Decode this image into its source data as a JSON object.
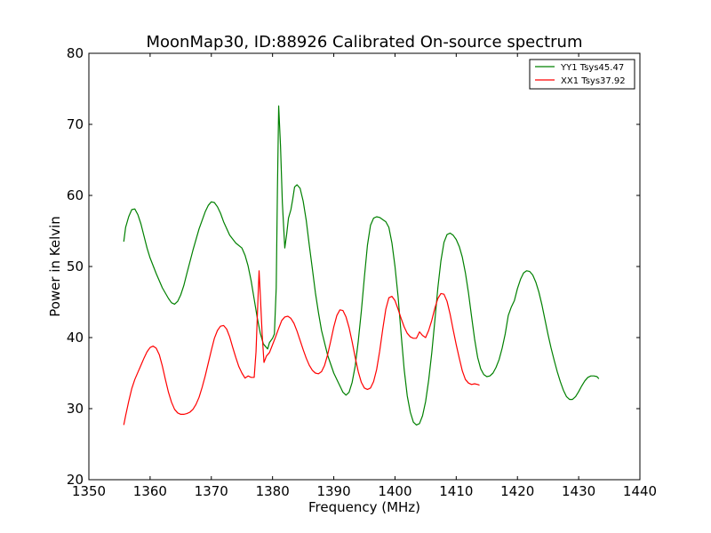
{
  "chart_data": {
    "type": "line",
    "title": "MoonMap30, ID:88926 Calibrated On-source spectrum",
    "xlabel": "Frequency (MHz)",
    "ylabel": "Power in Kelvin",
    "xlim": [
      1350,
      1440
    ],
    "ylim": [
      20,
      80
    ],
    "xticks": [
      1350,
      1360,
      1370,
      1380,
      1390,
      1400,
      1410,
      1420,
      1430,
      1440
    ],
    "yticks": [
      20,
      30,
      40,
      50,
      60,
      70,
      80
    ],
    "grid": false,
    "legend_position": "top-right",
    "series": [
      {
        "name": "YY1 Tsys45.47",
        "color": "#008000",
        "points": [
          [
            1355.7,
            53.5
          ],
          [
            1356.0,
            55.5
          ],
          [
            1356.5,
            57.0
          ],
          [
            1357.0,
            58.0
          ],
          [
            1357.5,
            58.1
          ],
          [
            1358.0,
            57.3
          ],
          [
            1358.5,
            56.0
          ],
          [
            1359.0,
            54.3
          ],
          [
            1359.5,
            52.6
          ],
          [
            1360.0,
            51.2
          ],
          [
            1361.0,
            49.0
          ],
          [
            1362.0,
            47.0
          ],
          [
            1363.0,
            45.5
          ],
          [
            1363.5,
            44.9
          ],
          [
            1364.0,
            44.7
          ],
          [
            1364.5,
            45.1
          ],
          [
            1365.0,
            46.0
          ],
          [
            1365.5,
            47.3
          ],
          [
            1366.0,
            49.0
          ],
          [
            1367.0,
            52.3
          ],
          [
            1368.0,
            55.3
          ],
          [
            1369.0,
            57.7
          ],
          [
            1369.5,
            58.6
          ],
          [
            1370.0,
            59.1
          ],
          [
            1370.5,
            59.0
          ],
          [
            1371.0,
            58.4
          ],
          [
            1371.5,
            57.5
          ],
          [
            1372.0,
            56.3
          ],
          [
            1373.0,
            54.4
          ],
          [
            1374.0,
            53.3
          ],
          [
            1375.0,
            52.6
          ],
          [
            1375.5,
            51.6
          ],
          [
            1376.0,
            50.1
          ],
          [
            1376.5,
            48.0
          ],
          [
            1377.0,
            45.4
          ],
          [
            1377.5,
            42.8
          ],
          [
            1378.0,
            40.6
          ],
          [
            1378.5,
            39.1
          ],
          [
            1379.0,
            38.6
          ],
          [
            1379.2,
            38.4
          ],
          [
            1379.5,
            39.3
          ],
          [
            1380.0,
            39.9
          ],
          [
            1380.3,
            40.5
          ],
          [
            1380.6,
            47.0
          ],
          [
            1380.8,
            61.0
          ],
          [
            1381.0,
            72.6
          ],
          [
            1381.3,
            67.0
          ],
          [
            1381.6,
            59.0
          ],
          [
            1382.0,
            52.6
          ],
          [
            1382.3,
            54.5
          ],
          [
            1382.6,
            56.8
          ],
          [
            1383.0,
            58.0
          ],
          [
            1383.3,
            59.5
          ],
          [
            1383.6,
            61.2
          ],
          [
            1384.0,
            61.5
          ],
          [
            1384.5,
            61.0
          ],
          [
            1385.0,
            59.2
          ],
          [
            1385.5,
            56.5
          ],
          [
            1386.0,
            53.0
          ],
          [
            1386.5,
            49.7
          ],
          [
            1387.0,
            46.3
          ],
          [
            1387.5,
            43.5
          ],
          [
            1388.0,
            41.0
          ],
          [
            1389.0,
            37.5
          ],
          [
            1390.0,
            35.0
          ],
          [
            1391.0,
            33.2
          ],
          [
            1391.5,
            32.3
          ],
          [
            1392.0,
            31.9
          ],
          [
            1392.5,
            32.3
          ],
          [
            1393.0,
            33.7
          ],
          [
            1393.5,
            36.0
          ],
          [
            1394.0,
            39.5
          ],
          [
            1394.5,
            43.7
          ],
          [
            1395.0,
            48.5
          ],
          [
            1395.5,
            53.0
          ],
          [
            1396.0,
            55.8
          ],
          [
            1396.5,
            56.8
          ],
          [
            1397.0,
            57.0
          ],
          [
            1397.5,
            56.9
          ],
          [
            1398.0,
            56.6
          ],
          [
            1398.5,
            56.3
          ],
          [
            1399.0,
            55.5
          ],
          [
            1399.5,
            53.3
          ],
          [
            1400.0,
            50.0
          ],
          [
            1400.5,
            45.8
          ],
          [
            1401.0,
            40.5
          ],
          [
            1401.5,
            35.5
          ],
          [
            1402.0,
            31.8
          ],
          [
            1402.5,
            29.5
          ],
          [
            1403.0,
            28.1
          ],
          [
            1403.5,
            27.7
          ],
          [
            1404.0,
            27.9
          ],
          [
            1404.5,
            29.0
          ],
          [
            1405.0,
            31.0
          ],
          [
            1405.5,
            34.0
          ],
          [
            1406.0,
            37.8
          ],
          [
            1406.5,
            42.3
          ],
          [
            1407.0,
            47.0
          ],
          [
            1407.5,
            50.8
          ],
          [
            1408.0,
            53.4
          ],
          [
            1408.5,
            54.5
          ],
          [
            1409.0,
            54.7
          ],
          [
            1409.5,
            54.4
          ],
          [
            1410.0,
            53.8
          ],
          [
            1410.5,
            52.8
          ],
          [
            1411.0,
            51.3
          ],
          [
            1411.5,
            49.1
          ],
          [
            1412.0,
            46.3
          ],
          [
            1412.5,
            43.0
          ],
          [
            1413.0,
            39.8
          ],
          [
            1413.5,
            37.2
          ],
          [
            1414.0,
            35.6
          ],
          [
            1414.5,
            34.8
          ],
          [
            1415.0,
            34.5
          ],
          [
            1415.5,
            34.6
          ],
          [
            1416.0,
            35.0
          ],
          [
            1416.5,
            35.8
          ],
          [
            1417.0,
            36.9
          ],
          [
            1417.5,
            38.5
          ],
          [
            1418.0,
            40.5
          ],
          [
            1418.5,
            43.1
          ],
          [
            1419.0,
            44.3
          ],
          [
            1419.5,
            45.2
          ],
          [
            1420.0,
            46.9
          ],
          [
            1420.5,
            48.2
          ],
          [
            1421.0,
            49.1
          ],
          [
            1421.5,
            49.4
          ],
          [
            1422.0,
            49.3
          ],
          [
            1422.5,
            48.8
          ],
          [
            1423.0,
            47.8
          ],
          [
            1423.5,
            46.4
          ],
          [
            1424.0,
            44.6
          ],
          [
            1424.5,
            42.5
          ],
          [
            1425.0,
            40.4
          ],
          [
            1425.5,
            38.5
          ],
          [
            1426.0,
            36.8
          ],
          [
            1426.5,
            35.2
          ],
          [
            1427.0,
            33.8
          ],
          [
            1427.5,
            32.6
          ],
          [
            1428.0,
            31.7
          ],
          [
            1428.5,
            31.3
          ],
          [
            1429.0,
            31.3
          ],
          [
            1429.5,
            31.7
          ],
          [
            1430.0,
            32.4
          ],
          [
            1430.5,
            33.2
          ],
          [
            1431.0,
            33.9
          ],
          [
            1431.5,
            34.4
          ],
          [
            1432.0,
            34.6
          ],
          [
            1432.5,
            34.6
          ],
          [
            1433.0,
            34.5
          ],
          [
            1433.3,
            34.2
          ]
        ]
      },
      {
        "name": "XX1 Tsys37.92",
        "color": "#ff0000",
        "points": [
          [
            1355.7,
            27.7
          ],
          [
            1356.0,
            29.0
          ],
          [
            1356.5,
            31.0
          ],
          [
            1357.0,
            32.8
          ],
          [
            1357.5,
            34.1
          ],
          [
            1358.0,
            35.1
          ],
          [
            1358.5,
            36.1
          ],
          [
            1359.0,
            37.1
          ],
          [
            1359.5,
            38.0
          ],
          [
            1360.0,
            38.6
          ],
          [
            1360.5,
            38.8
          ],
          [
            1361.0,
            38.5
          ],
          [
            1361.5,
            37.6
          ],
          [
            1362.0,
            36.0
          ],
          [
            1362.5,
            34.1
          ],
          [
            1363.0,
            32.3
          ],
          [
            1363.5,
            30.9
          ],
          [
            1364.0,
            29.9
          ],
          [
            1364.5,
            29.4
          ],
          [
            1365.0,
            29.2
          ],
          [
            1365.5,
            29.2
          ],
          [
            1366.0,
            29.3
          ],
          [
            1366.5,
            29.5
          ],
          [
            1367.0,
            29.9
          ],
          [
            1367.5,
            30.6
          ],
          [
            1368.0,
            31.6
          ],
          [
            1368.5,
            33.0
          ],
          [
            1369.0,
            34.6
          ],
          [
            1369.5,
            36.4
          ],
          [
            1370.0,
            38.2
          ],
          [
            1370.5,
            39.9
          ],
          [
            1371.0,
            41.0
          ],
          [
            1371.5,
            41.6
          ],
          [
            1372.0,
            41.7
          ],
          [
            1372.5,
            41.2
          ],
          [
            1373.0,
            40.1
          ],
          [
            1373.5,
            38.6
          ],
          [
            1374.0,
            37.2
          ],
          [
            1374.5,
            35.9
          ],
          [
            1375.0,
            35.0
          ],
          [
            1375.5,
            34.3
          ],
          [
            1376.0,
            34.6
          ],
          [
            1376.5,
            34.4
          ],
          [
            1377.0,
            34.4
          ],
          [
            1377.3,
            38.0
          ],
          [
            1377.6,
            45.0
          ],
          [
            1377.8,
            49.4
          ],
          [
            1378.0,
            46.0
          ],
          [
            1378.3,
            40.5
          ],
          [
            1378.6,
            36.5
          ],
          [
            1379.0,
            37.4
          ],
          [
            1379.5,
            37.9
          ],
          [
            1380.0,
            39.0
          ],
          [
            1380.5,
            40.1
          ],
          [
            1381.0,
            41.3
          ],
          [
            1381.5,
            42.4
          ],
          [
            1382.0,
            42.9
          ],
          [
            1382.5,
            43.0
          ],
          [
            1383.0,
            42.7
          ],
          [
            1383.5,
            42.0
          ],
          [
            1384.0,
            40.9
          ],
          [
            1384.5,
            39.6
          ],
          [
            1385.0,
            38.3
          ],
          [
            1385.5,
            37.1
          ],
          [
            1386.0,
            36.1
          ],
          [
            1386.5,
            35.4
          ],
          [
            1387.0,
            35.0
          ],
          [
            1387.5,
            34.9
          ],
          [
            1388.0,
            35.2
          ],
          [
            1388.5,
            36.1
          ],
          [
            1389.0,
            37.6
          ],
          [
            1389.5,
            39.5
          ],
          [
            1390.0,
            41.5
          ],
          [
            1390.5,
            43.1
          ],
          [
            1391.0,
            43.9
          ],
          [
            1391.5,
            43.8
          ],
          [
            1392.0,
            42.9
          ],
          [
            1392.5,
            41.4
          ],
          [
            1393.0,
            39.4
          ],
          [
            1393.5,
            37.2
          ],
          [
            1394.0,
            35.2
          ],
          [
            1394.5,
            33.7
          ],
          [
            1395.0,
            32.9
          ],
          [
            1395.5,
            32.7
          ],
          [
            1396.0,
            32.9
          ],
          [
            1396.5,
            33.8
          ],
          [
            1397.0,
            35.5
          ],
          [
            1397.5,
            38.1
          ],
          [
            1398.0,
            41.2
          ],
          [
            1398.5,
            44.0
          ],
          [
            1399.0,
            45.6
          ],
          [
            1399.5,
            45.8
          ],
          [
            1400.0,
            45.2
          ],
          [
            1400.5,
            44.0
          ],
          [
            1401.0,
            42.7
          ],
          [
            1401.5,
            41.5
          ],
          [
            1402.0,
            40.6
          ],
          [
            1402.5,
            40.1
          ],
          [
            1403.0,
            39.9
          ],
          [
            1403.5,
            39.9
          ],
          [
            1404.0,
            40.8
          ],
          [
            1404.5,
            40.3
          ],
          [
            1405.0,
            40.0
          ],
          [
            1405.5,
            41.0
          ],
          [
            1406.0,
            42.4
          ],
          [
            1406.5,
            44.1
          ],
          [
            1407.0,
            45.5
          ],
          [
            1407.5,
            46.2
          ],
          [
            1408.0,
            46.1
          ],
          [
            1408.5,
            45.1
          ],
          [
            1409.0,
            43.3
          ],
          [
            1409.5,
            41.1
          ],
          [
            1410.0,
            39.0
          ],
          [
            1410.5,
            37.1
          ],
          [
            1411.0,
            35.3
          ],
          [
            1411.5,
            34.1
          ],
          [
            1412.0,
            33.6
          ],
          [
            1412.5,
            33.4
          ],
          [
            1413.0,
            33.5
          ],
          [
            1413.5,
            33.4
          ],
          [
            1413.8,
            33.3
          ]
        ]
      }
    ]
  }
}
